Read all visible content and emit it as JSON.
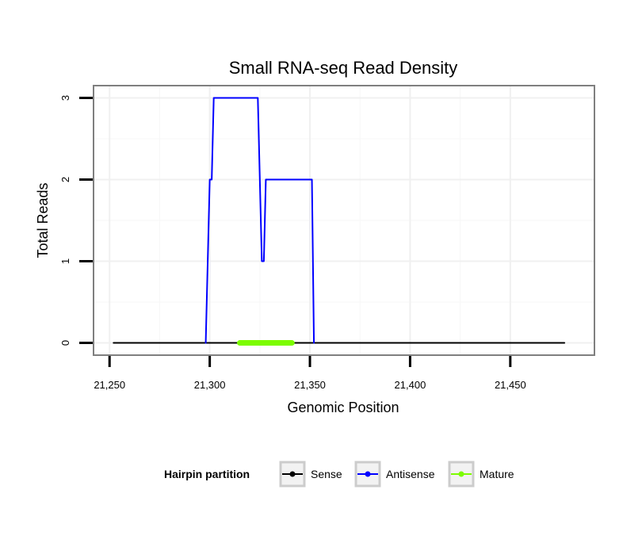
{
  "chart_data": {
    "type": "line",
    "title": "Small RNA-seq Read Density",
    "xlabel": "Genomic Position",
    "ylabel": "Total Reads",
    "xlim": [
      21242,
      21492
    ],
    "ylim": [
      -0.15,
      3.15
    ],
    "x_ticks": [
      21250,
      21300,
      21350,
      21400,
      21450
    ],
    "x_tick_labels": [
      "21,250",
      "21,300",
      "21,350",
      "21,400",
      "21,450"
    ],
    "y_ticks": [
      0,
      1,
      2,
      3
    ],
    "y_tick_labels": [
      "0",
      "1",
      "2",
      "3"
    ],
    "grid": true,
    "legend": {
      "title": "Hairpin partition",
      "position": "bottom"
    },
    "series": [
      {
        "name": "Sense",
        "color": "#000000",
        "x": [
          21252,
          21477
        ],
        "y": [
          0,
          0
        ]
      },
      {
        "name": "Antisense",
        "color": "#0000ff",
        "x": [
          21298,
          21300,
          21301,
          21302,
          21324,
          21326,
          21327,
          21328,
          21351,
          21352
        ],
        "y": [
          0,
          2,
          2,
          3,
          3,
          1,
          1,
          2,
          2,
          0
        ]
      },
      {
        "name": "Mature",
        "color": "#7cfc00",
        "x": [
          21315,
          21341
        ],
        "y": [
          0,
          0
        ]
      }
    ]
  }
}
